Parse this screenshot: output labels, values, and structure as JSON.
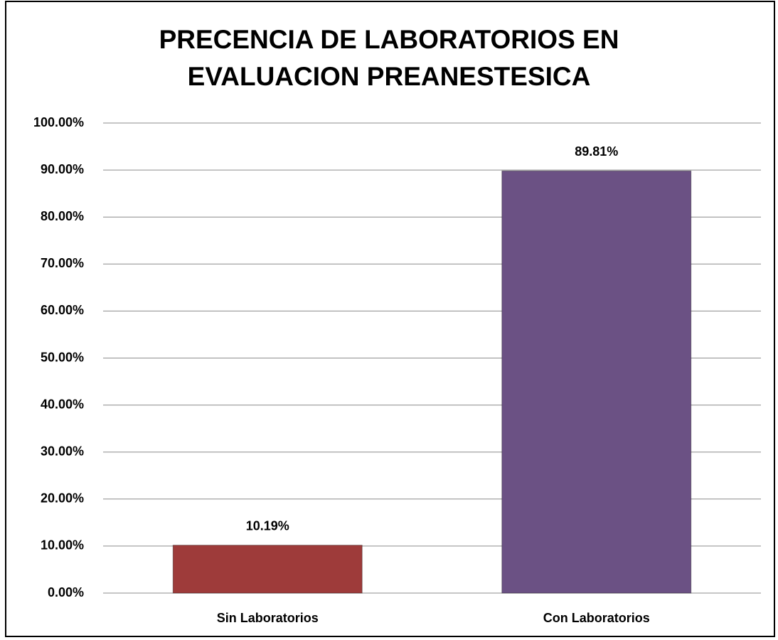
{
  "chart_data": {
    "type": "bar",
    "title": "PRECENCIA DE LABORATORIOS EN EVALUACION PREANESTESICA",
    "categories": [
      "Sin Laboratorios",
      "Con Laboratorios"
    ],
    "values": [
      10.19,
      89.81
    ],
    "value_labels": [
      "10.19%",
      "89.81%"
    ],
    "colors": [
      "#9e3b3a",
      "#6b5184"
    ],
    "ylim": [
      0,
      100
    ],
    "yticks": [
      {
        "value": 0,
        "label": "0.00%"
      },
      {
        "value": 10,
        "label": "10.00%"
      },
      {
        "value": 20,
        "label": "20.00%"
      },
      {
        "value": 30,
        "label": "30.00%"
      },
      {
        "value": 40,
        "label": "40.00%"
      },
      {
        "value": 50,
        "label": "50.00%"
      },
      {
        "value": 60,
        "label": "60.00%"
      },
      {
        "value": 70,
        "label": "70.00%"
      },
      {
        "value": 80,
        "label": "80.00%"
      },
      {
        "value": 90,
        "label": "90.00%"
      },
      {
        "value": 100,
        "label": "100.00%"
      }
    ],
    "grid": true
  }
}
